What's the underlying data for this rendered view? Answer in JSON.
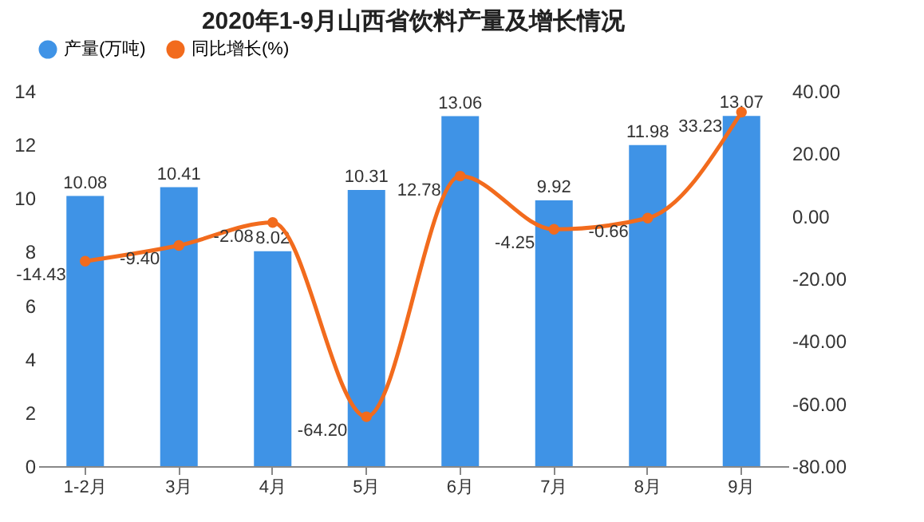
{
  "chart_data": {
    "type": "bar",
    "title": "2020年1-9月山西省饮料产量及增长情况",
    "categories": [
      "1-2月",
      "3月",
      "4月",
      "5月",
      "6月",
      "7月",
      "8月",
      "9月"
    ],
    "series": [
      {
        "name": "产量(万吨)",
        "type": "bar",
        "color": "#3f93e6",
        "values": [
          10.08,
          10.41,
          8.02,
          10.31,
          13.06,
          9.92,
          11.98,
          13.07
        ],
        "value_labels": [
          "10.08",
          "10.41",
          "8.02",
          "10.31",
          "13.06",
          "9.92",
          "11.98",
          "13.07"
        ]
      },
      {
        "name": "同比增长(%)",
        "type": "line",
        "axis": "y2",
        "color": "#f26b1d",
        "values": [
          -14.43,
          -9.4,
          -2.08,
          -64.2,
          12.78,
          -4.25,
          -0.66,
          33.23
        ],
        "value_labels": [
          "-14.43",
          "-9.40",
          "-2.08",
          "-64.20",
          "12.78",
          "-4.25",
          "-0.66",
          "33.23"
        ]
      }
    ],
    "ylim": [
      0,
      14
    ],
    "yticks": [
      0,
      2,
      4,
      6,
      8,
      10,
      12,
      14
    ],
    "y2lim": [
      -80,
      40
    ],
    "y2ticks": [
      {
        "value": -80,
        "label": "-80.00"
      },
      {
        "value": -60,
        "label": "-60.00"
      },
      {
        "value": -40,
        "label": "-40.00"
      },
      {
        "value": -20,
        "label": "-20.00"
      },
      {
        "value": 0,
        "label": "0.00"
      },
      {
        "value": 20,
        "label": "20.00"
      },
      {
        "value": 40,
        "label": "40.00"
      }
    ],
    "data_labels": true,
    "marker": "circle",
    "legend": "top",
    "grid": false
  }
}
